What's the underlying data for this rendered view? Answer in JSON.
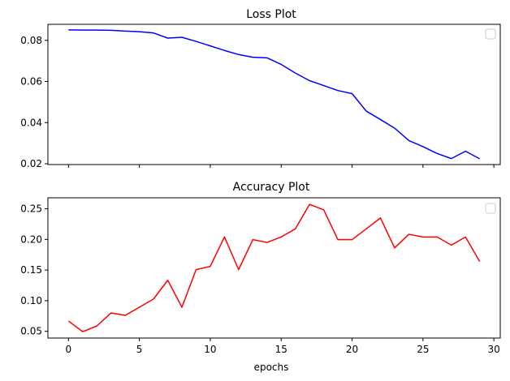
{
  "chart_data": [
    {
      "type": "line",
      "title": "Loss Plot",
      "xlabel": "",
      "ylabel": "",
      "xlim": [
        -1.45,
        30.45
      ],
      "ylim": [
        0.0196,
        0.0878
      ],
      "xticks": [
        0,
        5,
        10,
        15,
        20,
        25,
        30
      ],
      "xtick_labels_visible": false,
      "yticks": [
        0.02,
        0.04,
        0.06,
        0.08
      ],
      "ytick_labels": [
        "0.02",
        "0.04",
        "0.06",
        "0.08"
      ],
      "grid": false,
      "legend": "top-right, empty",
      "x": [
        0,
        1,
        2,
        3,
        4,
        5,
        6,
        7,
        8,
        9,
        10,
        11,
        12,
        13,
        14,
        15,
        16,
        17,
        18,
        19,
        20,
        21,
        22,
        23,
        24,
        25,
        26,
        27,
        28,
        29
      ],
      "series": [
        {
          "color": "#0000ff",
          "values": [
            0.0851,
            0.085,
            0.085,
            0.0849,
            0.0845,
            0.0842,
            0.0836,
            0.0811,
            0.0815,
            0.0795,
            0.0773,
            0.0751,
            0.0731,
            0.0718,
            0.0715,
            0.0683,
            0.0641,
            0.0604,
            0.058,
            0.0556,
            0.0541,
            0.0456,
            0.0415,
            0.0373,
            0.0313,
            0.0283,
            0.025,
            0.0225,
            0.0261,
            0.0224
          ]
        }
      ]
    },
    {
      "type": "line",
      "title": "Accuracy Plot",
      "xlabel": "epochs",
      "ylabel": "",
      "xlim": [
        -1.45,
        30.45
      ],
      "ylim": [
        0.039,
        0.268
      ],
      "xticks": [
        0,
        5,
        10,
        15,
        20,
        25,
        30
      ],
      "xtick_labels": [
        "0",
        "5",
        "10",
        "15",
        "20",
        "25",
        "30"
      ],
      "yticks": [
        0.05,
        0.1,
        0.15,
        0.2,
        0.25
      ],
      "ytick_labels": [
        "0.05",
        "0.10",
        "0.15",
        "0.20",
        "0.25"
      ],
      "grid": false,
      "legend": "top-right, empty",
      "x": [
        0,
        1,
        2,
        3,
        4,
        5,
        6,
        7,
        8,
        9,
        10,
        11,
        12,
        13,
        14,
        15,
        16,
        17,
        18,
        19,
        20,
        21,
        22,
        23,
        24,
        25,
        26,
        27,
        28,
        29
      ],
      "series": [
        {
          "color": "#ff0000",
          "values": [
            0.0667,
            0.0494,
            0.0587,
            0.08,
            0.076,
            0.0893,
            0.1027,
            0.1333,
            0.0893,
            0.1507,
            0.156,
            0.204,
            0.1507,
            0.1996,
            0.1951,
            0.204,
            0.2173,
            0.2573,
            0.2484,
            0.1996,
            0.1996,
            0.2173,
            0.2351,
            0.1862,
            0.2084,
            0.204,
            0.204,
            0.1907,
            0.204,
            0.164
          ]
        }
      ]
    }
  ]
}
